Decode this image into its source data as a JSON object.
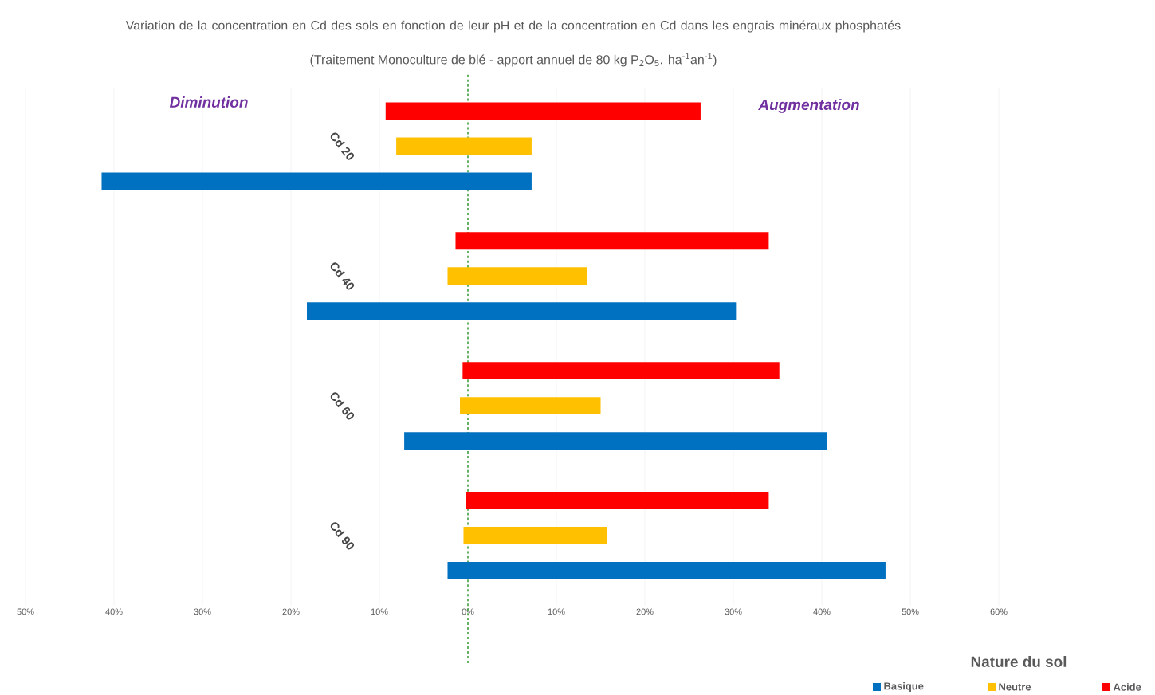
{
  "chart_data": {
    "type": "bar",
    "orientation": "horizontal",
    "title": "Variation de la concentration en Cd des sols en fonction de leur pH et de la concentration en Cd dans les engrais minéraux phosphatés",
    "subtitle": "(Traitement Monoculture de blé - apport annuel de 80 kg P$_{2}$O$_{5}$. ha$^{-1}$an$^{-1}$)",
    "categories": [
      "Cd 20",
      "Cd 40",
      "Cd 60",
      "Cd 90"
    ],
    "series": [
      {
        "name": "Basique",
        "color": "#0070c0",
        "base": [
          -41.4,
          -18.2,
          -7.2,
          -2.3
        ],
        "values": [
          48.6,
          48.5,
          47.8,
          49.5
        ]
      },
      {
        "name": "Neutre",
        "color": "#ffc000",
        "base": [
          -8.1,
          -2.3,
          -0.9,
          -0.5
        ],
        "values": [
          15.3,
          15.8,
          15.9,
          16.2
        ]
      },
      {
        "name": "Acide",
        "color": "#ff0000",
        "base": [
          -9.3,
          -1.4,
          -0.6,
          -0.2
        ],
        "values": [
          35.6,
          35.4,
          35.8,
          34.2
        ]
      }
    ],
    "xlim": [
      -50,
      60
    ],
    "xticks": [
      {
        "value": -50,
        "label": "50%"
      },
      {
        "value": -40,
        "label": "40%"
      },
      {
        "value": -30,
        "label": "30%"
      },
      {
        "value": -20,
        "label": "20%"
      },
      {
        "value": -10,
        "label": "10%"
      },
      {
        "value": 0,
        "label": "0%"
      },
      {
        "value": 10,
        "label": "10%"
      },
      {
        "value": 20,
        "label": "20%"
      },
      {
        "value": 30,
        "label": "30%"
      },
      {
        "value": 40,
        "label": "40%"
      },
      {
        "value": 50,
        "label": "50%"
      },
      {
        "value": 60,
        "label": "60%"
      }
    ],
    "grid": "x",
    "ref_lines": [
      {
        "axis": "x",
        "value": 0,
        "color": "#339933",
        "line_style": "dashed"
      }
    ],
    "annotations": [
      "Diminution",
      "Augmentation"
    ],
    "legend_title": "Nature du sol",
    "legend": "bottom right"
  }
}
